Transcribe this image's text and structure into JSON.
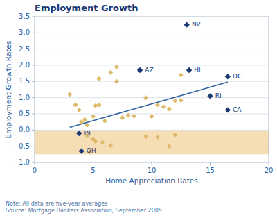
{
  "chart_data": {
    "type": "scatter",
    "title": "Employment Growth",
    "xlabel": "Home Appreciation Rates",
    "ylabel": "Employment Growth Rates",
    "note": "Note: All data are five-year averages\nSource: Mortgage Bankers Association, September 2005",
    "xlim": [
      0,
      20
    ],
    "ylim": [
      -1.0,
      3.5
    ],
    "xticks": [
      0,
      5,
      10,
      15,
      20
    ],
    "yticks": [
      {
        "value": -1.0,
        "label": "−1.0"
      },
      {
        "value": -0.5,
        "label": "−0.5"
      },
      {
        "value": 0.0,
        "label": "0.0"
      },
      {
        "value": 0.5,
        "label": "0.5"
      },
      {
        "value": 1.0,
        "label": "1.0"
      },
      {
        "value": 1.5,
        "label": "1.5"
      },
      {
        "value": 2.0,
        "label": "2.0"
      },
      {
        "value": 2.5,
        "label": "2.5"
      },
      {
        "value": 3.0,
        "label": "3.0"
      },
      {
        "value": 3.5,
        "label": "3.5"
      }
    ],
    "grid": "y",
    "bands": [
      {
        "from": -0.75,
        "to": 0.0,
        "color": "#F5DEB3"
      }
    ],
    "series": [
      {
        "type": "scatter",
        "marker": "diamond",
        "color": "#DEB96A",
        "x": [
          3.0,
          3.5,
          3.8,
          4.0,
          4.3,
          4.5,
          5.0,
          5.2,
          5.5,
          5.5,
          6.0,
          6.5,
          7.0,
          7.0,
          7.5,
          8.0,
          8.5,
          9.5,
          10.0,
          10.5,
          11.0,
          11.5,
          12.0,
          12.5,
          4.5,
          5.0,
          5.2,
          5.8,
          6.5,
          9.5,
          10.5,
          11.5,
          12.0,
          4.7,
          12.5
        ],
        "values": [
          1.1,
          0.78,
          0.62,
          0.25,
          0.32,
          0.15,
          0.42,
          0.75,
          0.78,
          1.58,
          0.28,
          1.78,
          1.95,
          1.5,
          0.38,
          0.45,
          0.43,
          1.0,
          0.42,
          0.78,
          0.72,
          0.65,
          0.9,
          1.7,
          -0.18,
          -0.28,
          -0.35,
          -0.38,
          -0.48,
          -0.2,
          -0.22,
          -0.5,
          -0.15,
          -0.68,
          0.92
        ]
      },
      {
        "type": "scatter",
        "marker": "diamond",
        "color": "#1B3A73",
        "labels": [
          "NV",
          "AZ",
          "HI",
          "DC",
          "RI",
          "CA",
          "IN",
          "OH"
        ],
        "x": [
          13.0,
          9.0,
          13.2,
          16.5,
          15.0,
          16.5,
          3.8,
          4.0
        ],
        "values": [
          3.25,
          1.85,
          1.85,
          1.65,
          1.05,
          0.62,
          -0.1,
          -0.65
        ]
      },
      {
        "type": "line",
        "line_style": "solid",
        "color": "#2E5F9E",
        "x": [
          3.0,
          16.5
        ],
        "values": [
          0.08,
          1.48
        ]
      }
    ]
  }
}
